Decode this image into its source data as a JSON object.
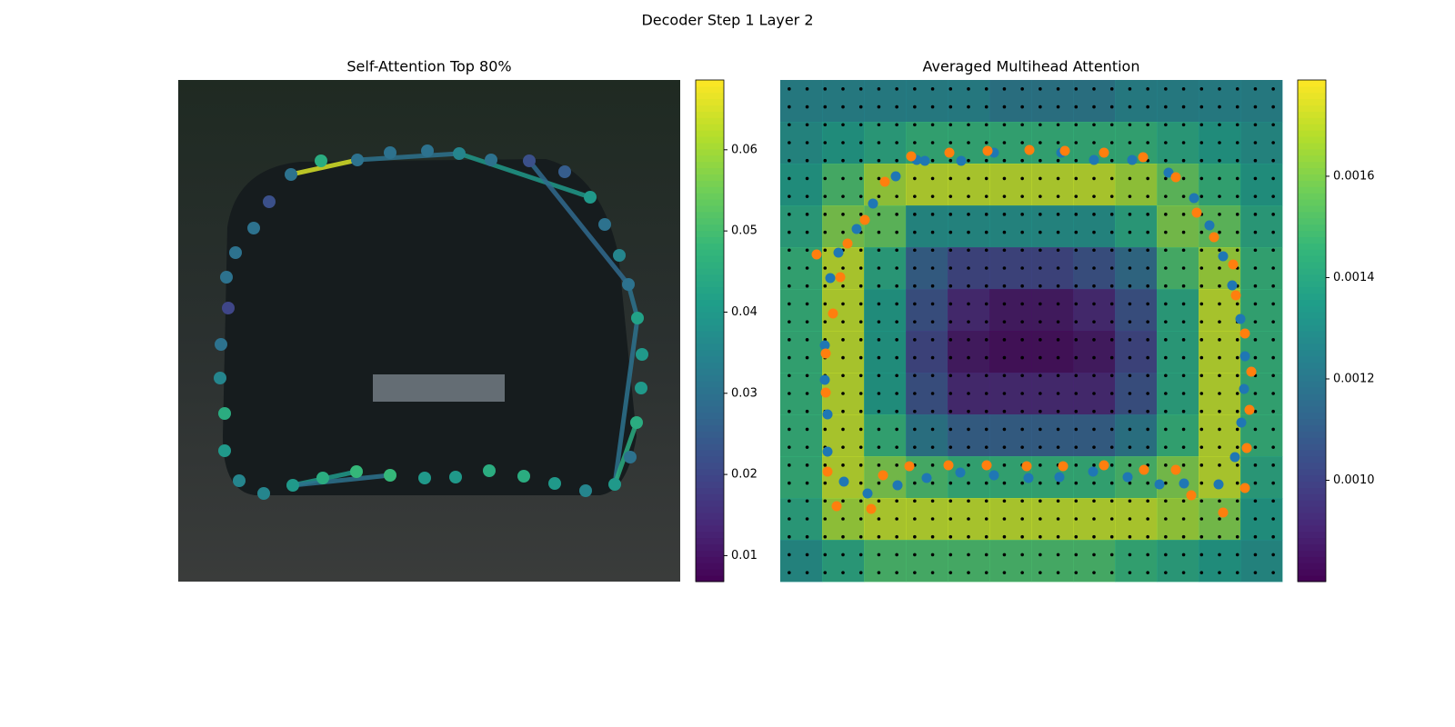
{
  "title": "Decoder Step 1 Layer 2",
  "chart_data": [
    {
      "type": "scatter",
      "title": "Self-Attention Top 80%",
      "colormap": "viridis",
      "xlim": [
        0,
        552
      ],
      "ylim": [
        552,
        0
      ],
      "x": [
        124,
        157,
        197,
        233,
        274,
        309,
        344,
        386,
        425,
        453,
        469,
        485,
        495,
        505,
        510,
        509,
        504,
        497,
        480,
        448,
        414,
        380,
        342,
        305,
        271,
        233,
        196,
        159,
        126,
        94,
        67,
        51,
        51,
        46,
        47,
        55,
        53,
        63,
        83,
        100
      ],
      "y": [
        104,
        89,
        88,
        80,
        78,
        81,
        88,
        89,
        101,
        129,
        159,
        193,
        225,
        262,
        302,
        339,
        377,
        415,
        445,
        452,
        444,
        436,
        430,
        437,
        438,
        435,
        431,
        438,
        446,
        455,
        441,
        408,
        367,
        328,
        291,
        251,
        217,
        190,
        163,
        134
      ],
      "values": [
        0.03,
        0.045,
        0.03,
        0.03,
        0.03,
        0.035,
        0.03,
        0.022,
        0.025,
        0.04,
        0.03,
        0.035,
        0.03,
        0.042,
        0.04,
        0.04,
        0.045,
        0.03,
        0.04,
        0.035,
        0.04,
        0.045,
        0.045,
        0.04,
        0.04,
        0.048,
        0.048,
        0.045,
        0.04,
        0.035,
        0.035,
        0.04,
        0.045,
        0.035,
        0.03,
        0.02,
        0.03,
        0.03,
        0.03,
        0.022
      ],
      "edges": {
        "source": [
          0,
          2,
          5,
          7,
          12,
          13,
          16,
          28,
          28
        ],
        "target": [
          2,
          5,
          9,
          12,
          13,
          18,
          18,
          26,
          25
        ],
        "values": [
          0.065,
          0.03,
          0.04,
          0.028,
          0.03,
          0.03,
          0.045,
          0.04,
          0.03
        ]
      },
      "clim": [
        0.0068,
        0.0686
      ],
      "cticks": [
        0.01,
        0.02,
        0.03,
        0.04,
        0.05,
        0.06
      ]
    },
    {
      "type": "heatmap",
      "title": "Averaged Multihead Attention",
      "colormap": "viridis",
      "xlim": [
        0,
        552
      ],
      "ylim": [
        552,
        0
      ],
      "matrix": [
        [
          0.00125,
          0.00125,
          0.00125,
          0.00125,
          0.00125,
          0.0012,
          0.0012,
          0.0012,
          0.00125,
          0.00125,
          0.00125,
          0.00125
        ],
        [
          0.0013,
          0.00135,
          0.0014,
          0.00145,
          0.00145,
          0.00145,
          0.00145,
          0.00145,
          0.00145,
          0.0014,
          0.00135,
          0.0013
        ],
        [
          0.00135,
          0.0015,
          0.00165,
          0.0017,
          0.0017,
          0.0017,
          0.0017,
          0.0017,
          0.00165,
          0.00155,
          0.00145,
          0.00135
        ],
        [
          0.0014,
          0.0016,
          0.00155,
          0.0013,
          0.0013,
          0.0013,
          0.0013,
          0.0013,
          0.0014,
          0.0016,
          0.00155,
          0.0014
        ],
        [
          0.00145,
          0.0017,
          0.0014,
          0.0011,
          0.001,
          0.001,
          0.001,
          0.00105,
          0.00115,
          0.0015,
          0.00165,
          0.00145
        ],
        [
          0.00145,
          0.0017,
          0.00135,
          0.00105,
          0.0009,
          0.00085,
          0.00085,
          0.0009,
          0.00105,
          0.0014,
          0.0017,
          0.00145
        ],
        [
          0.00145,
          0.0017,
          0.00135,
          0.001,
          0.00085,
          0.00082,
          0.00082,
          0.00085,
          0.001,
          0.0014,
          0.0017,
          0.00145
        ],
        [
          0.00145,
          0.0017,
          0.00135,
          0.00105,
          0.0009,
          0.0009,
          0.0009,
          0.0009,
          0.00105,
          0.0014,
          0.0017,
          0.00145
        ],
        [
          0.00145,
          0.0017,
          0.00145,
          0.0012,
          0.0011,
          0.0011,
          0.0011,
          0.0011,
          0.0012,
          0.00145,
          0.0017,
          0.00145
        ],
        [
          0.00145,
          0.0017,
          0.0016,
          0.0015,
          0.00145,
          0.00145,
          0.00145,
          0.00145,
          0.0015,
          0.0016,
          0.0017,
          0.0014
        ],
        [
          0.0014,
          0.00165,
          0.0017,
          0.0017,
          0.0017,
          0.0017,
          0.0017,
          0.0017,
          0.0017,
          0.00165,
          0.0016,
          0.00135
        ],
        [
          0.0013,
          0.0014,
          0.0015,
          0.0015,
          0.0015,
          0.0015,
          0.0015,
          0.0015,
          0.00145,
          0.0014,
          0.00135,
          0.0013
        ]
      ],
      "series": [
        {
          "color": "#1f77b4",
          "x": [
            127,
            159,
            199,
            235,
            309,
            345,
            387,
            427,
            455,
            472,
            487,
            497,
            506,
            511,
            510,
            507,
            500,
            482,
            444,
            417,
            382,
            344,
            307,
            273,
            235,
            198,
            161,
            129,
            96,
            70,
            52,
            52,
            49,
            49,
            55,
            64,
            84,
            102,
            150
          ],
          "y": [
            106,
            89,
            89,
            80,
            80,
            88,
            88,
            102,
            130,
            160,
            194,
            226,
            263,
            304,
            340,
            377,
            415,
            445,
            444,
            445,
            437,
            431,
            437,
            438,
            435,
            432,
            438,
            446,
            455,
            442,
            409,
            368,
            330,
            292,
            218,
            190,
            164,
            136,
            88
          ]
        },
        {
          "color": "#ff7f0e",
          "x": [
            144,
            186,
            228,
            274,
            313,
            356,
            399,
            435,
            458,
            477,
            498,
            501,
            511,
            518,
            516,
            513,
            511,
            487,
            452,
            435,
            400,
            356,
            311,
            271,
            227,
            185,
            142,
            113,
            100,
            62,
            52,
            50,
            50,
            58,
            66,
            74,
            93,
            115,
            40
          ],
          "y": [
            84,
            80,
            78,
            77,
            78,
            80,
            85,
            107,
            146,
            173,
            203,
            237,
            279,
            321,
            363,
            405,
            449,
            476,
            457,
            429,
            429,
            424,
            425,
            425,
            424,
            424,
            425,
            435,
            472,
            469,
            431,
            344,
            301,
            257,
            217,
            180,
            154,
            112,
            192
          ]
        }
      ],
      "clim": [
        0.0008,
        0.00179
      ],
      "cticks": [
        {
          "value": 0.001,
          "label": "0.0010"
        },
        {
          "value": 0.0012,
          "label": "0.0012"
        },
        {
          "value": 0.0014,
          "label": "0.0014"
        },
        {
          "value": 0.0016,
          "label": "0.0016"
        }
      ]
    }
  ]
}
